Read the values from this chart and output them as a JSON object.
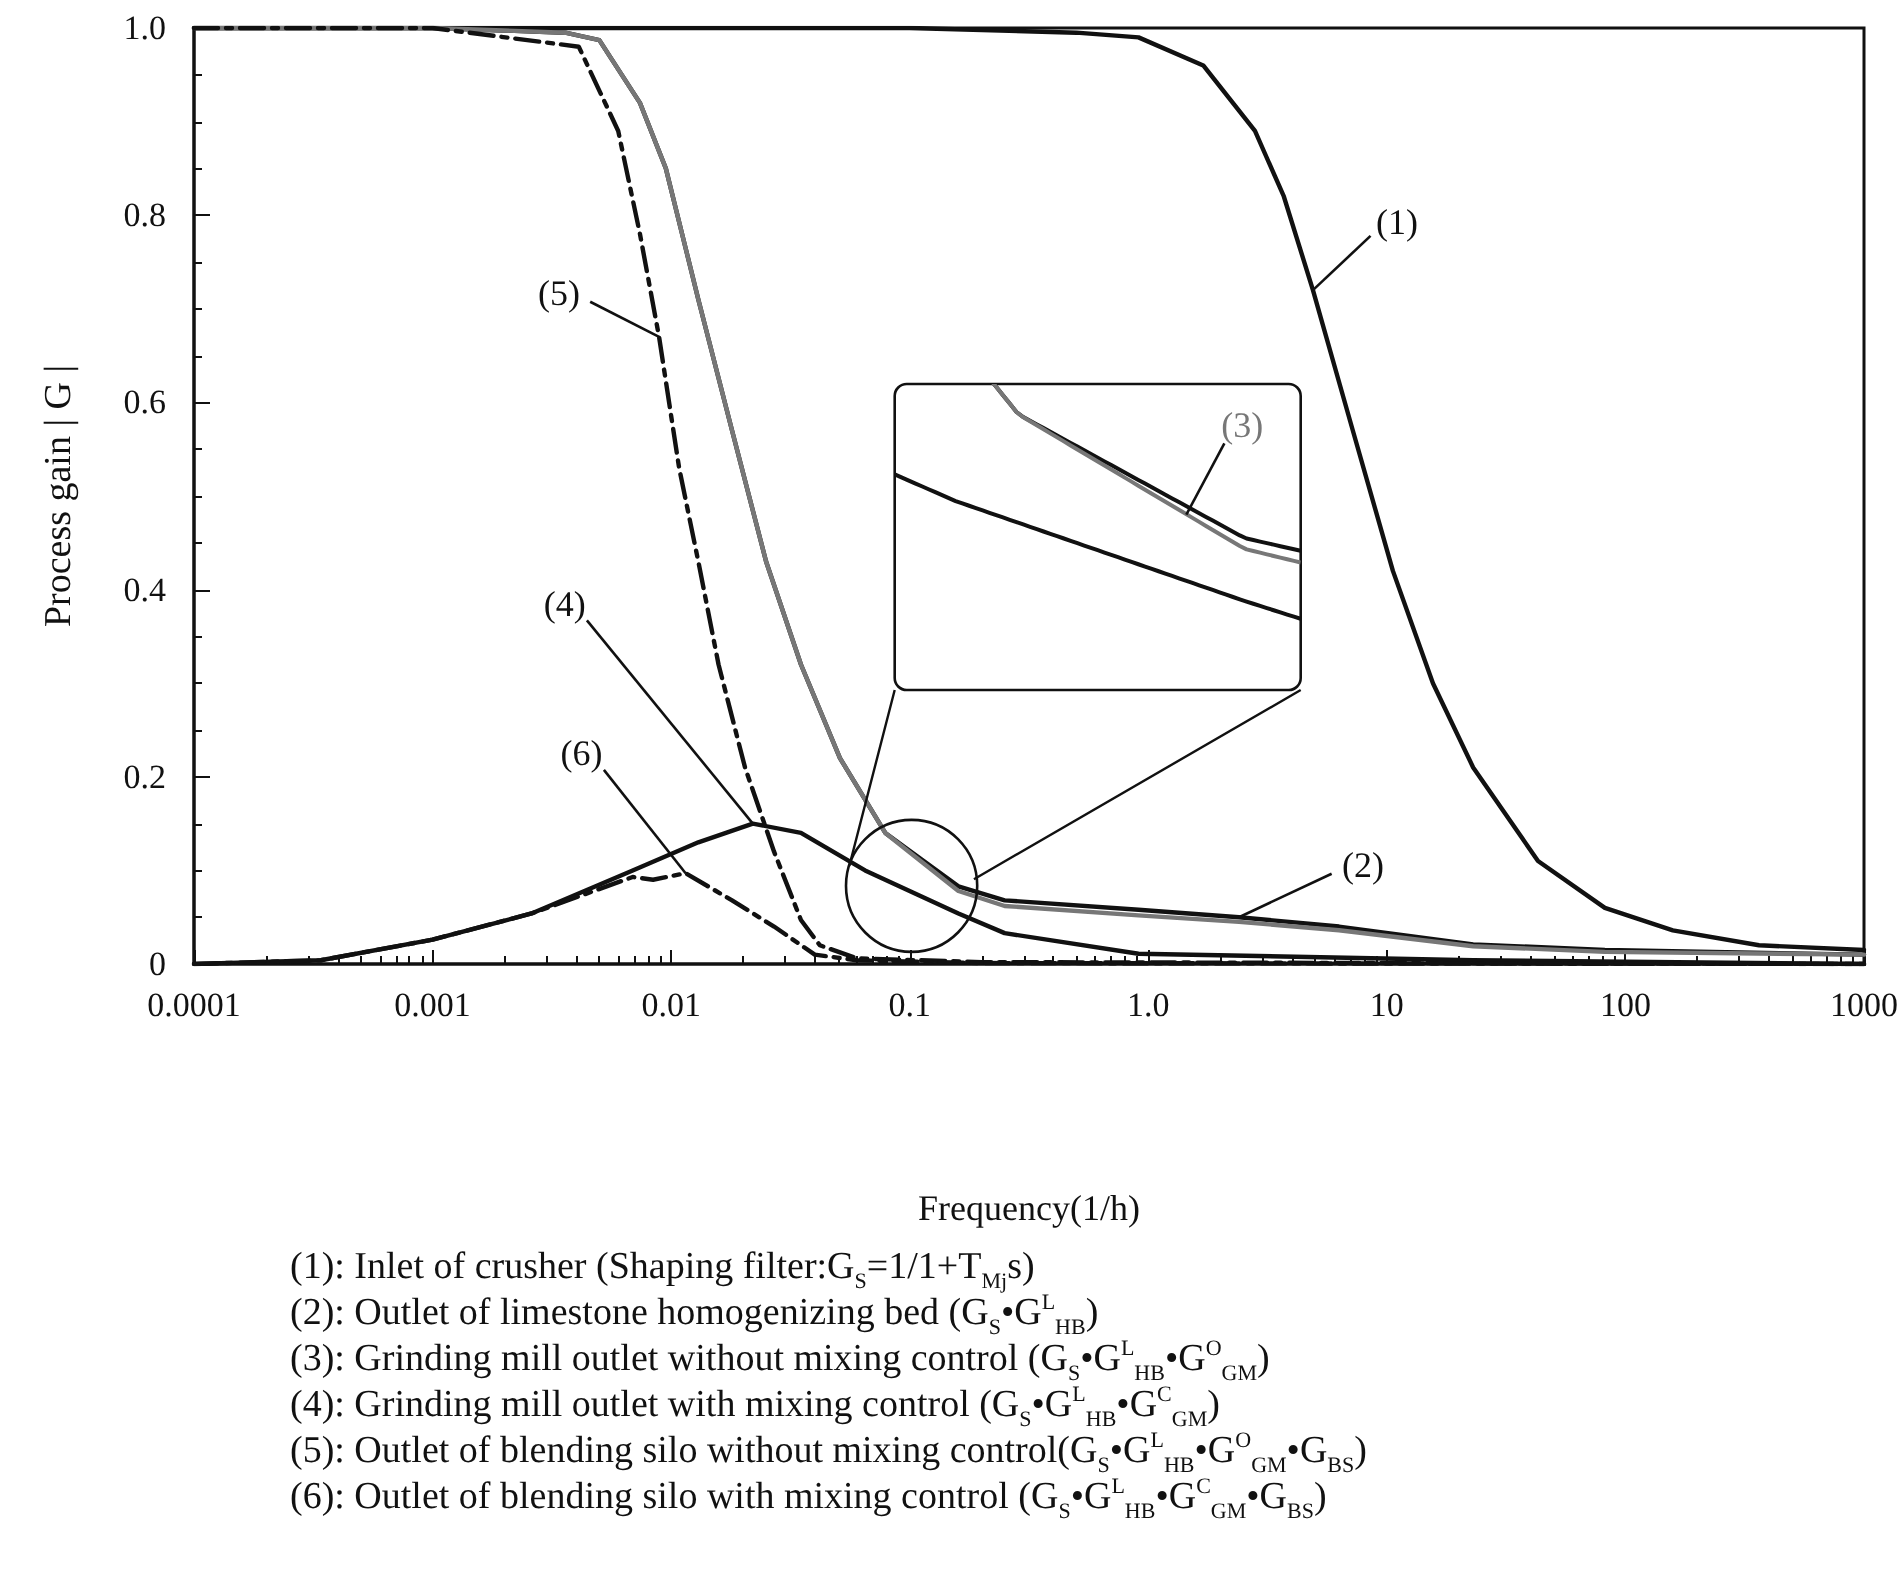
{
  "chart_data": {
    "type": "line",
    "xlabel": "Frequency(1/h)",
    "ylabel": "Process gain | G |",
    "log": "x",
    "xlim": [
      0.0001,
      1000
    ],
    "xticks": [
      0.0001,
      0.001,
      0.01,
      0.1,
      {
        "value": 1,
        "label": "1.0"
      },
      10,
      100,
      1000
    ],
    "ylim": [
      0,
      1
    ],
    "yticks": [
      0,
      0.2,
      0.4,
      0.6,
      0.8,
      {
        "value": 1,
        "label": "1.0"
      }
    ],
    "grid": false,
    "legend": false,
    "marker": "none",
    "series": [
      {
        "name": "(1)",
        "color": "#111111",
        "line_style": "solid",
        "x": [
          0.0001,
          0.001,
          0.01,
          0.1,
          0.5,
          0.91,
          1.7,
          2.8,
          3.7,
          4.9,
          7.2,
          10.6,
          15.6,
          23,
          43,
          82,
          158,
          363,
          1000
        ],
        "values": [
          1,
          1,
          1,
          1,
          0.995,
          0.99,
          0.96,
          0.89,
          0.82,
          0.72,
          0.57,
          0.42,
          0.3,
          0.21,
          0.11,
          0.06,
          0.036,
          0.02,
          0.015
        ]
      },
      {
        "name": "(2)",
        "color": "#111111",
        "line_style": "solid",
        "x": [
          0.0001,
          0.001,
          0.0036,
          0.005,
          0.0074,
          0.0095,
          0.013,
          0.018,
          0.025,
          0.035,
          0.051,
          0.079,
          0.16,
          0.25,
          0.91,
          2.4,
          6.3,
          23,
          82,
          1000
        ],
        "values": [
          1,
          1,
          0.995,
          0.987,
          0.92,
          0.85,
          0.71,
          0.57,
          0.43,
          0.32,
          0.22,
          0.14,
          0.083,
          0.068,
          0.058,
          0.05,
          0.04,
          0.021,
          0.015,
          0.01
        ]
      },
      {
        "name": "(3)",
        "color": "#777777",
        "line_style": "solid",
        "x": [
          0.0001,
          0.001,
          0.0036,
          0.005,
          0.0074,
          0.0095,
          0.013,
          0.018,
          0.025,
          0.035,
          0.051,
          0.079,
          0.16,
          0.25,
          0.91,
          2.4,
          6.3,
          23,
          82,
          1000
        ],
        "values": [
          1,
          1,
          0.995,
          0.987,
          0.92,
          0.85,
          0.71,
          0.57,
          0.43,
          0.32,
          0.22,
          0.14,
          0.078,
          0.062,
          0.052,
          0.045,
          0.036,
          0.019,
          0.013,
          0.01
        ]
      },
      {
        "name": "(4)",
        "color": "#111111",
        "line_style": "solid",
        "x": [
          0.0001,
          0.00034,
          0.001,
          0.0026,
          0.0069,
          0.013,
          0.022,
          0.035,
          0.065,
          0.16,
          0.25,
          0.91,
          23,
          1000
        ],
        "values": [
          0,
          0.004,
          0.026,
          0.054,
          0.1,
          0.13,
          0.15,
          0.14,
          0.1,
          0.054,
          0.033,
          0.011,
          0.004,
          0
        ]
      },
      {
        "name": "(5)",
        "color": "#111111",
        "line_style": "dashed",
        "x": [
          0.0001,
          0.001,
          0.0041,
          0.006,
          0.0074,
          0.0089,
          0.0108,
          0.013,
          0.0158,
          0.0204,
          0.027,
          0.035,
          0.042,
          0.06,
          0.2,
          1000
        ],
        "values": [
          1,
          1,
          0.98,
          0.89,
          0.78,
          0.67,
          0.53,
          0.43,
          0.32,
          0.21,
          0.12,
          0.047,
          0.02,
          0.006,
          0.002,
          0
        ]
      },
      {
        "name": "(6)",
        "color": "#111111",
        "line_style": "dashed",
        "x": [
          0.0001,
          0.00034,
          0.001,
          0.0026,
          0.0069,
          0.0084,
          0.0115,
          0.018,
          0.027,
          0.04,
          0.06,
          0.2,
          1000
        ],
        "values": [
          0,
          0.004,
          0.026,
          0.054,
          0.093,
          0.09,
          0.097,
          0.068,
          0.04,
          0.01,
          0.004,
          0.001,
          0
        ]
      }
    ],
    "annotations": [
      "(1): Inlet of crusher (Shaping filter:G$_{S}$=1/1+T$_{Mj}$s)",
      "(2): Outlet of limestone homogenizing bed (G$_{S}$•G$^{L}$$_{HB}$)",
      "(3): Grinding mill outlet without mixing control (G$_{S}$•G$^{L}$$_{HB}$•G$^{O}$$_{GM}$)",
      "(4): Grinding mill outlet with mixing control (G$_{S}$•G$^{L}$$_{HB}$•G$^{C}$$_{GM}$)",
      "(5): Outlet of blending silo without mixing control(G$_{S}$•G$^{L}$$_{HB}$•G$^{O}$$_{GM}$•G$_{BS}$)",
      "(6): Outlet of blending silo with mixing control (G$_{S}$•G$^{L}$$_{HB}$•G$^{C}$$_{GM}$•G$_{BS}$)"
    ]
  }
}
